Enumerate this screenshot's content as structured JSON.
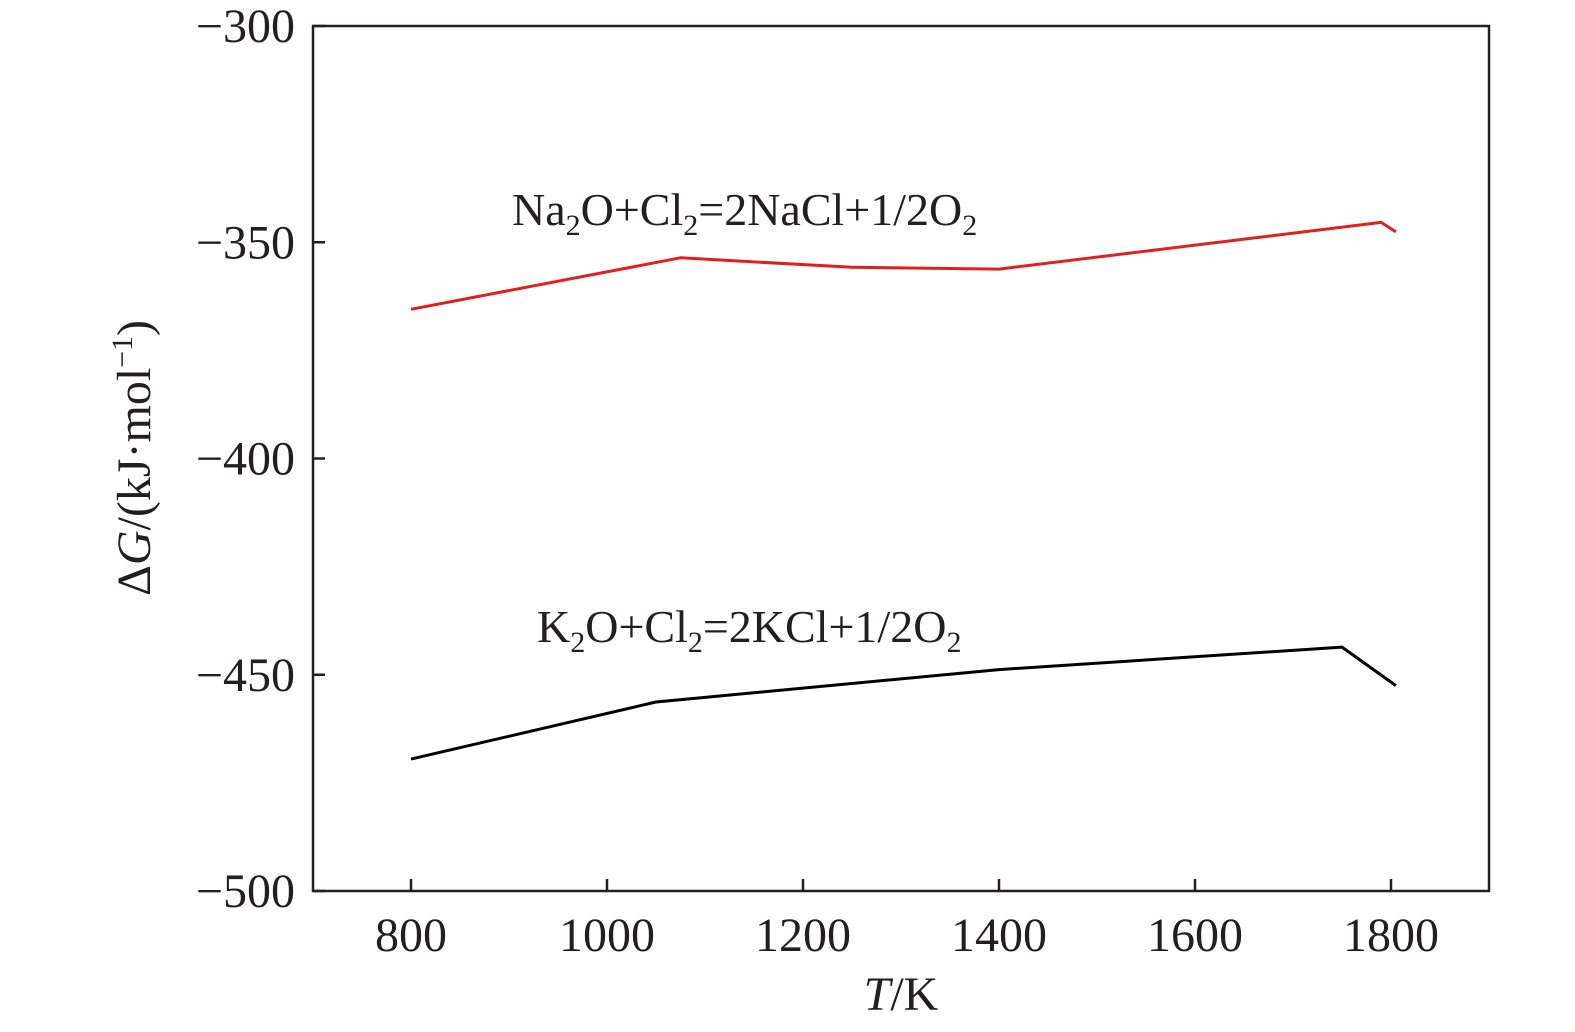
{
  "chart_data": {
    "type": "line",
    "title": "",
    "xlabel": "T/K",
    "xlabel_parts": {
      "var": "T",
      "unit": "/K"
    },
    "ylabel": "ΔG/(kJ·mol⁻¹)",
    "ylabel_parts": {
      "delta": "Δ",
      "var": "G",
      "unit_pre": "/(kJ·mol",
      "unit_sup": "−1",
      "unit_post": ")"
    },
    "xlim": [
      700,
      1900
    ],
    "ylim": [
      -500,
      -300
    ],
    "x_ticks": [
      800,
      1000,
      1200,
      1400,
      1600,
      1800
    ],
    "x_tick_labels": [
      "800",
      "1000",
      "1200",
      "1400",
      "1600",
      "1800"
    ],
    "y_ticks": [
      -500,
      -450,
      -400,
      -350,
      -300
    ],
    "y_tick_labels": [
      "−500",
      "−450",
      "−400",
      "−350",
      "−300"
    ],
    "grid": false,
    "legend": "none",
    "series": [
      {
        "name": "Na2O+Cl2=2NaCl+1/2O2",
        "label_parts": [
          {
            "t": "Na"
          },
          {
            "t": "2",
            "sub": true
          },
          {
            "t": "O+Cl"
          },
          {
            "t": "2",
            "sub": true
          },
          {
            "t": "=2NaCl+1/2O"
          },
          {
            "t": "2",
            "sub": true
          }
        ],
        "color": "#e02020",
        "x": [
          800,
          1075,
          1250,
          1400,
          1790,
          1805
        ],
        "y": [
          -365.5,
          -353.6,
          -355.8,
          -356.2,
          -345.4,
          -347.6
        ]
      },
      {
        "name": "K2O+Cl2=2KCl+1/2O2",
        "label_parts": [
          {
            "t": "K"
          },
          {
            "t": "2",
            "sub": true
          },
          {
            "t": "O+Cl"
          },
          {
            "t": "2",
            "sub": true
          },
          {
            "t": "=2KCl+1/2O"
          },
          {
            "t": "2",
            "sub": true
          }
        ],
        "color": "#000000",
        "x": [
          800,
          1050,
          1400,
          1750,
          1805
        ],
        "y": [
          -469.5,
          -456.3,
          -448.8,
          -443.6,
          -452.5
        ]
      }
    ]
  }
}
